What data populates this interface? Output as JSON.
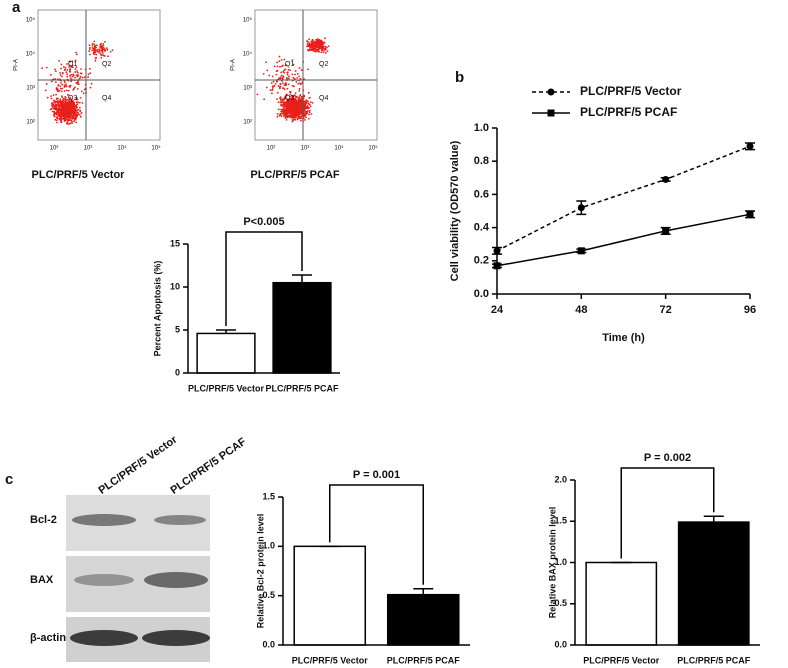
{
  "panel_labels": [
    "a",
    "b",
    "c"
  ],
  "flow": [
    {
      "caption": "PLC/PRF/5 Vector",
      "y_label": "PI-A",
      "quadrants": [
        "Q1",
        "Q2",
        "Q3",
        "Q4"
      ],
      "xticks": [
        "10²",
        "10³",
        "10⁴",
        "10⁵"
      ],
      "yticks": [
        "10²",
        "10³",
        "10⁴",
        "10⁵"
      ]
    },
    {
      "caption": "PLC/PRF/5 PCAF",
      "y_label": "PI-A",
      "quadrants": [
        "Q1",
        "Q2",
        "Q3",
        "Q4"
      ],
      "xticks": [
        "10²",
        "10³",
        "10⁴",
        "10⁵"
      ],
      "yticks": [
        "10²",
        "10³",
        "10⁴",
        "10⁵"
      ]
    }
  ],
  "blot": {
    "columns": [
      "PLC/PRF/5 Vector",
      "PLC/PRF/5 PCAF"
    ],
    "rows": [
      "Bcl-2",
      "BAX",
      "β-actin"
    ]
  },
  "chart_data": [
    {
      "type": "bar",
      "y_label": "Percent Apoptosis (%)",
      "categories": [
        "PLC/PRF/5 Vector",
        "PLC/PRF/5 PCAF"
      ],
      "values": [
        4.6,
        10.5
      ],
      "errors": [
        0.4,
        0.9
      ],
      "colors": [
        "#ffffff",
        "#000000"
      ],
      "ylim": [
        0,
        15
      ],
      "yticks": [
        0,
        5,
        10,
        15
      ],
      "annotation": "P<0.005"
    },
    {
      "type": "line",
      "x_label": "Time (h)",
      "y_label": "Cell viability (OD570  value)",
      "x": [
        24,
        48,
        72,
        96
      ],
      "xlim": [
        24,
        96
      ],
      "xticks": [
        24,
        48,
        72,
        96
      ],
      "ylim": [
        0,
        1.0
      ],
      "yticks": [
        {
          "value": 0,
          "label": "0.0"
        },
        0.2,
        0.4,
        0.6,
        0.8,
        {
          "value": 1.0,
          "label": "1.0"
        }
      ],
      "series": [
        {
          "name": "PLC/PRF/5 Vector",
          "color": "#000000",
          "line_style": "dashed",
          "marker": "circle",
          "values": [
            0.26,
            0.52,
            0.69,
            0.89
          ],
          "errors": [
            0.02,
            0.04,
            0.01,
            0.02
          ]
        },
        {
          "name": "PLC/PRF/5 PCAF",
          "color": "#000000",
          "line_style": "solid",
          "marker": "square",
          "values": [
            0.17,
            0.26,
            0.38,
            0.48
          ],
          "errors": [
            0.01,
            0.01,
            0.02,
            0.02
          ]
        }
      ]
    },
    {
      "type": "bar",
      "y_label": "Relative Bcl-2 protein level",
      "categories": [
        "PLC/PRF/5 Vector",
        "PLC/PRF/5 PCAF"
      ],
      "values": [
        1.0,
        0.51
      ],
      "errors": [
        0,
        0.06
      ],
      "colors": [
        "#ffffff",
        "#000000"
      ],
      "ylim": [
        0,
        1.5
      ],
      "yticks": [
        {
          "value": 0,
          "label": "0.0"
        },
        0.5,
        {
          "value": 1,
          "label": "1.0"
        },
        1.5
      ],
      "annotation": "P = 0.001"
    },
    {
      "type": "bar",
      "y_label": "Relative BAX protein level",
      "categories": [
        "PLC/PRF/5 Vector",
        "PLC/PRF/5 PCAF"
      ],
      "values": [
        1.0,
        1.49
      ],
      "errors": [
        0,
        0.07
      ],
      "colors": [
        "#ffffff",
        "#000000"
      ],
      "ylim": [
        0,
        2.0
      ],
      "yticks": [
        {
          "value": 0,
          "label": "0.0"
        },
        0.5,
        {
          "value": 1,
          "label": "1.0"
        },
        1.5,
        {
          "value": 2,
          "label": "2.0"
        }
      ],
      "annotation": "P = 0.002"
    }
  ]
}
